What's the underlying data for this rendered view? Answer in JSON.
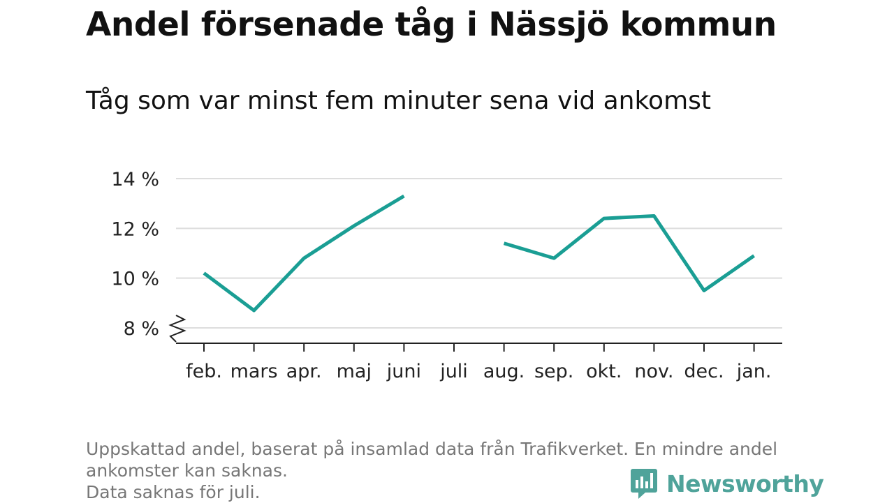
{
  "title": "Andel försenade tåg i Nässjö kommun",
  "subtitle": "Tåg som var minst fem minuter sena vid ankomst",
  "footnote": {
    "line1": "Uppskattad andel, baserat på insamlad data från Trafikverket. En mindre andel",
    "line2": "ankomster kan saknas.",
    "line3": "Data saknas för juli."
  },
  "brand": {
    "name": "Newsworthy",
    "color": "#4fa39a",
    "icon": "chart-speech-bubble-icon"
  },
  "chart_data": {
    "type": "line",
    "categories": [
      "feb.",
      "mars",
      "apr.",
      "maj",
      "juni",
      "juli",
      "aug.",
      "sep.",
      "okt.",
      "nov.",
      "dec.",
      "jan."
    ],
    "series": [
      {
        "values": [
          10.2,
          8.7,
          10.8,
          12.1,
          13.3,
          null,
          11.4,
          10.8,
          12.4,
          12.5,
          9.5,
          10.9
        ]
      }
    ],
    "yticks": [
      8,
      10,
      12,
      14
    ],
    "ytick_labels": [
      "8 %",
      "10 %",
      "12 %",
      "14 %"
    ],
    "ylim": [
      7.4,
      14
    ],
    "y_axis_break": true,
    "grid": true,
    "line_color": "#1a9e94",
    "grid_color": "#dddddd"
  }
}
